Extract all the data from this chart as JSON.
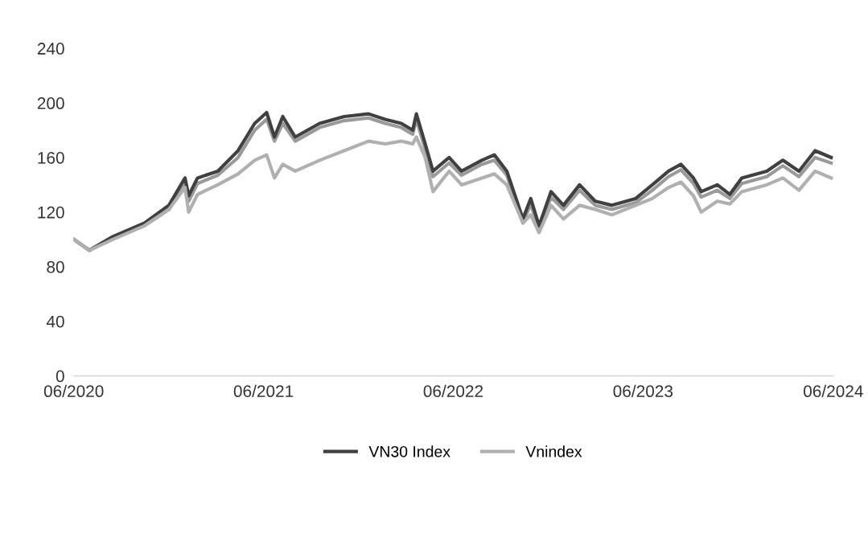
{
  "chart_data": {
    "type": "line",
    "x": [
      "2020-06-01",
      "2020-07-01",
      "2020-08-15",
      "2020-10-15",
      "2020-12-01",
      "2021-01-01",
      "2021-01-08",
      "2021-01-25",
      "2021-03-05",
      "2021-04-13",
      "2021-05-15",
      "2021-06-07",
      "2021-06-22",
      "2021-07-08",
      "2021-08-01",
      "2021-09-17",
      "2021-11-03",
      "2021-12-20",
      "2022-01-21",
      "2022-02-21",
      "2022-03-15",
      "2022-03-22",
      "2022-04-08",
      "2022-04-23",
      "2022-05-24",
      "2022-06-17",
      "2022-07-26",
      "2022-08-19",
      "2022-09-12",
      "2022-10-13",
      "2022-10-28",
      "2022-11-13",
      "2022-12-06",
      "2022-12-30",
      "2023-01-30",
      "2023-03-01",
      "2023-04-02",
      "2023-05-18",
      "2023-06-19",
      "2023-07-20",
      "2023-08-13",
      "2023-09-06",
      "2023-09-21",
      "2023-10-22",
      "2023-11-15",
      "2023-12-08",
      "2024-01-25",
      "2024-02-25",
      "2024-03-27",
      "2024-04-27",
      "2024-05-28"
    ],
    "series": [
      {
        "color": "#9a9a9a",
        "values": [
          100,
          92,
          101,
          110,
          122,
          140,
          128,
          141,
          147,
          160,
          180,
          188,
          172,
          185,
          172,
          182,
          187,
          189,
          185,
          182,
          177,
          188,
          166,
          146,
          156,
          147,
          155,
          158,
          147,
          112,
          126,
          107,
          131,
          122,
          136,
          125,
          122,
          127,
          136,
          146,
          151,
          141,
          131,
          136,
          130,
          141,
          146,
          154,
          146,
          160,
          156
        ]
      },
      {
        "name": "VN30 Index",
        "color": "#404040",
        "values": [
          100,
          92,
          102,
          112,
          125,
          145,
          132,
          145,
          150,
          165,
          185,
          193,
          175,
          190,
          175,
          185,
          190,
          192,
          188,
          185,
          180,
          192,
          170,
          150,
          160,
          150,
          158,
          162,
          150,
          115,
          130,
          110,
          135,
          125,
          140,
          128,
          125,
          130,
          140,
          150,
          155,
          145,
          135,
          140,
          133,
          145,
          150,
          158,
          150,
          165,
          160
        ]
      },
      {
        "name": "Vnindex",
        "color": "#b0b0b0",
        "values": [
          100,
          92,
          100,
          110,
          122,
          138,
          120,
          133,
          140,
          148,
          158,
          162,
          145,
          155,
          150,
          158,
          165,
          172,
          170,
          172,
          170,
          175,
          160,
          135,
          150,
          140,
          145,
          148,
          140,
          112,
          118,
          105,
          125,
          115,
          125,
          122,
          118,
          125,
          130,
          138,
          142,
          132,
          120,
          128,
          126,
          135,
          140,
          145,
          136,
          150,
          145
        ]
      }
    ],
    "xlim": [
      "2020-06-01",
      "2024-06-01"
    ],
    "xticks": [
      {
        "value": "2020-06-01",
        "label": "06/2020"
      },
      {
        "value": "2021-06-01",
        "label": "06/2021"
      },
      {
        "value": "2022-06-01",
        "label": "06/2022"
      },
      {
        "value": "2023-06-01",
        "label": "06/2023"
      },
      {
        "value": "2024-06-01",
        "label": "06/2024"
      }
    ],
    "ylim": [
      0,
      240
    ],
    "yticks": [
      0,
      40,
      80,
      120,
      160,
      200,
      240
    ],
    "grid": false,
    "legend": "bottom",
    "line_style": "solid",
    "marker": "none"
  }
}
